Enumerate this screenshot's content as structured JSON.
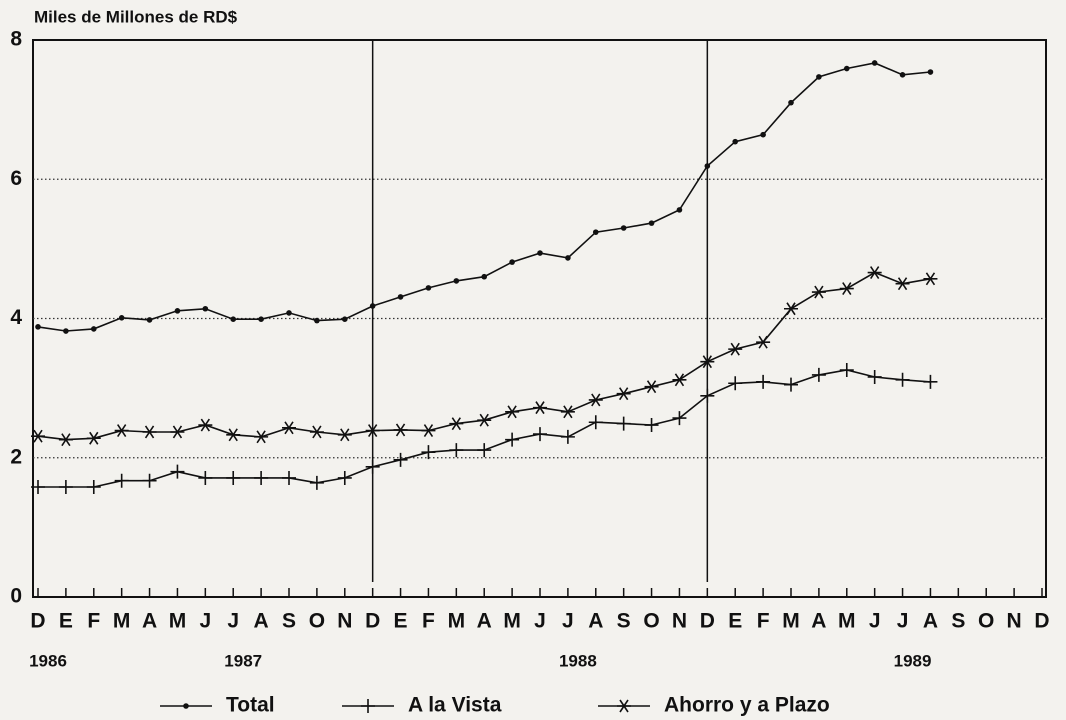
{
  "chart_data": {
    "type": "line",
    "title": "Miles de Millones de RD$",
    "categories": [
      "D",
      "E",
      "F",
      "M",
      "A",
      "M",
      "J",
      "J",
      "A",
      "S",
      "O",
      "N",
      "D",
      "E",
      "F",
      "M",
      "A",
      "M",
      "J",
      "J",
      "A",
      "S",
      "O",
      "N",
      "D",
      "E",
      "F",
      "M",
      "A",
      "M",
      "J",
      "J",
      "A",
      "S",
      "O",
      "N",
      "D"
    ],
    "year_labels": [
      "1986",
      null,
      null,
      null,
      null,
      null,
      null,
      "1987",
      null,
      null,
      null,
      null,
      null,
      null,
      null,
      null,
      null,
      null,
      null,
      "1988",
      null,
      null,
      null,
      null,
      null,
      null,
      null,
      null,
      null,
      null,
      null,
      "1989",
      null,
      null,
      null,
      null,
      null
    ],
    "series": [
      {
        "name": "Total",
        "color": "#111111",
        "marker": "dot",
        "values": [
          3.88,
          3.82,
          3.85,
          4.01,
          3.98,
          4.11,
          4.14,
          3.99,
          3.99,
          4.08,
          3.97,
          3.99,
          4.18,
          4.31,
          4.44,
          4.54,
          4.6,
          4.81,
          4.94,
          4.87,
          5.24,
          5.3,
          5.37,
          5.56,
          6.19,
          6.54,
          6.64,
          7.1,
          7.47,
          7.59,
          7.67,
          7.5,
          7.54,
          null,
          null,
          null,
          null
        ]
      },
      {
        "name": "A la Vista",
        "color": "#111111",
        "marker": "plus",
        "values": [
          1.58,
          1.58,
          1.58,
          1.67,
          1.67,
          1.8,
          1.71,
          1.71,
          1.71,
          1.71,
          1.64,
          1.71,
          1.87,
          1.97,
          2.08,
          2.11,
          2.11,
          2.26,
          2.34,
          2.3,
          2.51,
          2.49,
          2.47,
          2.57,
          2.89,
          3.07,
          3.09,
          3.05,
          3.19,
          3.26,
          3.16,
          3.12,
          3.09,
          null,
          null,
          null,
          null
        ]
      },
      {
        "name": "Ahorro y a Plazo",
        "color": "#111111",
        "marker": "star",
        "values": [
          2.31,
          2.26,
          2.28,
          2.39,
          2.37,
          2.37,
          2.47,
          2.33,
          2.3,
          2.43,
          2.37,
          2.33,
          2.39,
          2.4,
          2.39,
          2.49,
          2.54,
          2.66,
          2.72,
          2.66,
          2.83,
          2.92,
          3.02,
          3.12,
          3.38,
          3.56,
          3.66,
          4.14,
          4.38,
          4.43,
          4.66,
          4.5,
          4.57,
          null,
          null,
          null,
          null
        ]
      }
    ],
    "ylim": [
      0,
      8
    ],
    "yticks": [
      0,
      2,
      4,
      6,
      8
    ],
    "grid": true,
    "legend": "bottom"
  }
}
